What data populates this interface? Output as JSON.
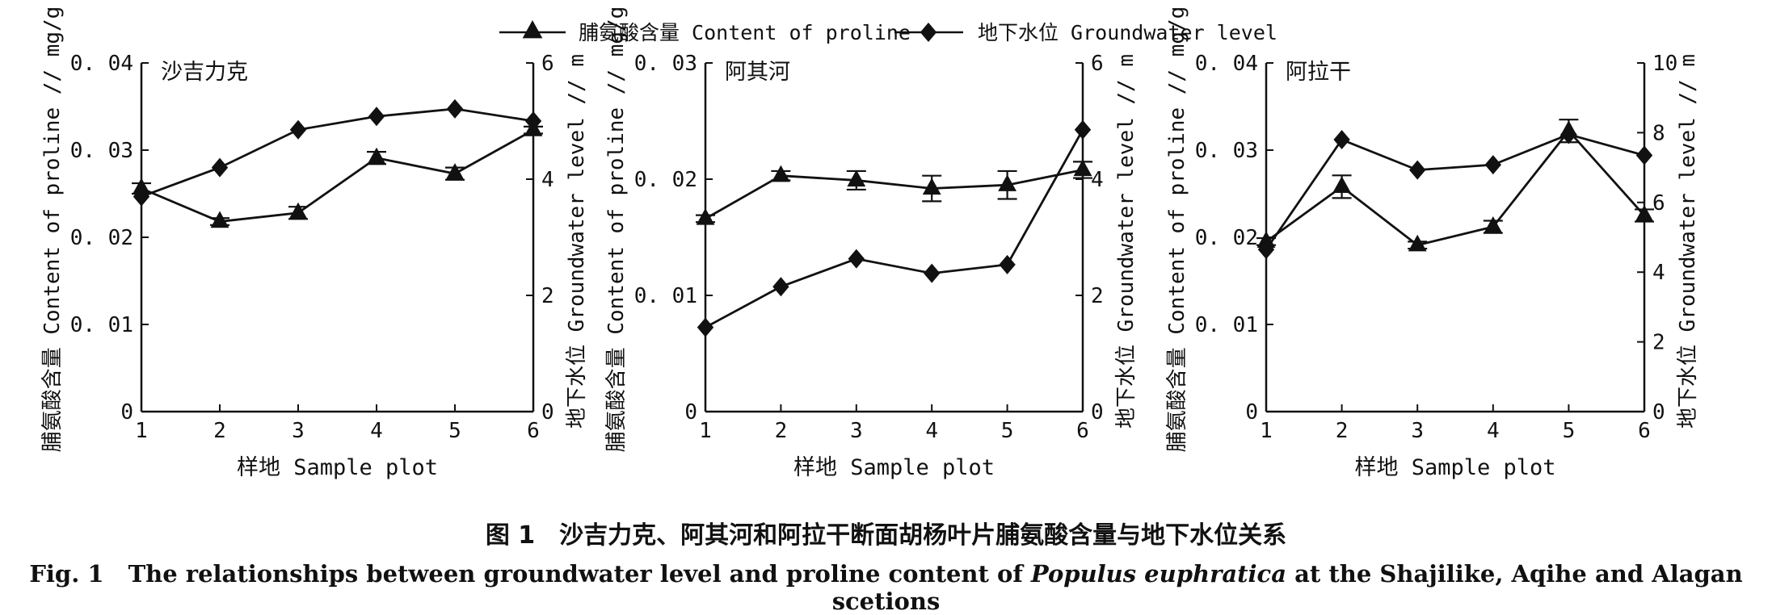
{
  "legend": [
    {
      "label": "脯氨酸含量 Content of proline",
      "marker": "triangle"
    },
    {
      "label": "地下水位 Groundwater level",
      "marker": "diamond"
    }
  ],
  "caption": {
    "cn_fig": "图 1",
    "cn_text": "沙吉力克、阿其河和阿拉干断面胡杨叶片脯氨酸含量与地下水位关系",
    "en_fig": "Fig. 1",
    "en_pre": "The relationships between groundwater level and proline content of ",
    "en_species": "Populus euphratica",
    "en_post": " at the Shajilike, Aqihe and Alagan scetions"
  },
  "colors": {
    "ink": "#111111",
    "background": "#ffffff"
  },
  "chart_data": [
    {
      "type": "line",
      "title": "沙吉力克",
      "xlabel": "样地 Sample plot",
      "ylabel": "脯氨酸含量 Content of proline // mg/g",
      "y2label": "地下水位 Groundwater level // m",
      "x": [
        1,
        2,
        3,
        4,
        5,
        6
      ],
      "xticks": [
        "1",
        "2",
        "3",
        "4",
        "5",
        "6"
      ],
      "ylim": [
        0,
        0.04
      ],
      "yticks": [
        "0",
        "0. 01",
        "0. 02",
        "0. 03",
        "0. 04"
      ],
      "y2lim": [
        0,
        6
      ],
      "y2ticks": [
        "0",
        "2",
        "4",
        "6"
      ],
      "series": [
        {
          "name": "脯氨酸含量 Content of proline",
          "axis": "left",
          "marker": "triangle",
          "values": [
            0.0256,
            0.0218,
            0.0228,
            0.0291,
            0.0273,
            0.0323
          ],
          "errors": [
            0.0006,
            0.0004,
            0.0007,
            0.0007,
            0.0007,
            0.0004
          ]
        },
        {
          "name": "地下水位 Groundwater level",
          "axis": "right",
          "marker": "diamond",
          "values": [
            3.7,
            4.2,
            4.85,
            5.08,
            5.21,
            5.0
          ]
        }
      ]
    },
    {
      "type": "line",
      "title": "阿其河",
      "xlabel": "样地 Sample plot",
      "ylabel": "脯氨酸含量 Content of proline // mg/g",
      "y2label": "地下水位 Groundwater level // m",
      "x": [
        1,
        2,
        3,
        4,
        5,
        6
      ],
      "xticks": [
        "1",
        "2",
        "3",
        "4",
        "5",
        "6"
      ],
      "ylim": [
        0,
        0.03
      ],
      "yticks": [
        "0",
        "0. 01",
        "0. 02",
        "0. 03"
      ],
      "y2lim": [
        0,
        6
      ],
      "y2ticks": [
        "0",
        "2",
        "4",
        "6"
      ],
      "series": [
        {
          "name": "脯氨酸含量 Content of proline",
          "axis": "left",
          "marker": "triangle",
          "values": [
            0.0166,
            0.0203,
            0.0199,
            0.0192,
            0.0195,
            0.0208
          ],
          "errors": [
            0.0003,
            0.0004,
            0.0008,
            0.0011,
            0.0012,
            0.0007
          ]
        },
        {
          "name": "地下水位 Groundwater level",
          "axis": "right",
          "marker": "diamond",
          "values": [
            1.45,
            2.15,
            2.63,
            2.38,
            2.53,
            4.85
          ]
        }
      ]
    },
    {
      "type": "line",
      "title": "阿拉干",
      "xlabel": "样地 Sample plot",
      "ylabel": "脯氨酸含量 Content of proline // mg/g",
      "y2label": "地下水位 Groundwater level // m",
      "x": [
        1,
        2,
        3,
        4,
        5,
        6
      ],
      "xticks": [
        "1",
        "2",
        "3",
        "4",
        "5",
        "6"
      ],
      "ylim": [
        0,
        0.04
      ],
      "yticks": [
        "0",
        "0. 01",
        "0. 02",
        "0. 03",
        "0. 04"
      ],
      "y2lim": [
        0,
        10
      ],
      "y2ticks": [
        "0",
        "2",
        "4",
        "6",
        "8",
        "10"
      ],
      "series": [
        {
          "name": "脯氨酸含量 Content of proline",
          "axis": "left",
          "marker": "triangle",
          "values": [
            0.0195,
            0.0258,
            0.0191,
            0.0212,
            0.0322,
            0.0225
          ],
          "errors": [
            0.0004,
            0.0013,
            0.0004,
            0.0007,
            0.0013,
            0.0007
          ]
        },
        {
          "name": "地下水位 Groundwater level",
          "axis": "right",
          "marker": "diamond",
          "values": [
            4.65,
            7.8,
            6.93,
            7.08,
            7.95,
            7.35
          ]
        }
      ]
    }
  ]
}
